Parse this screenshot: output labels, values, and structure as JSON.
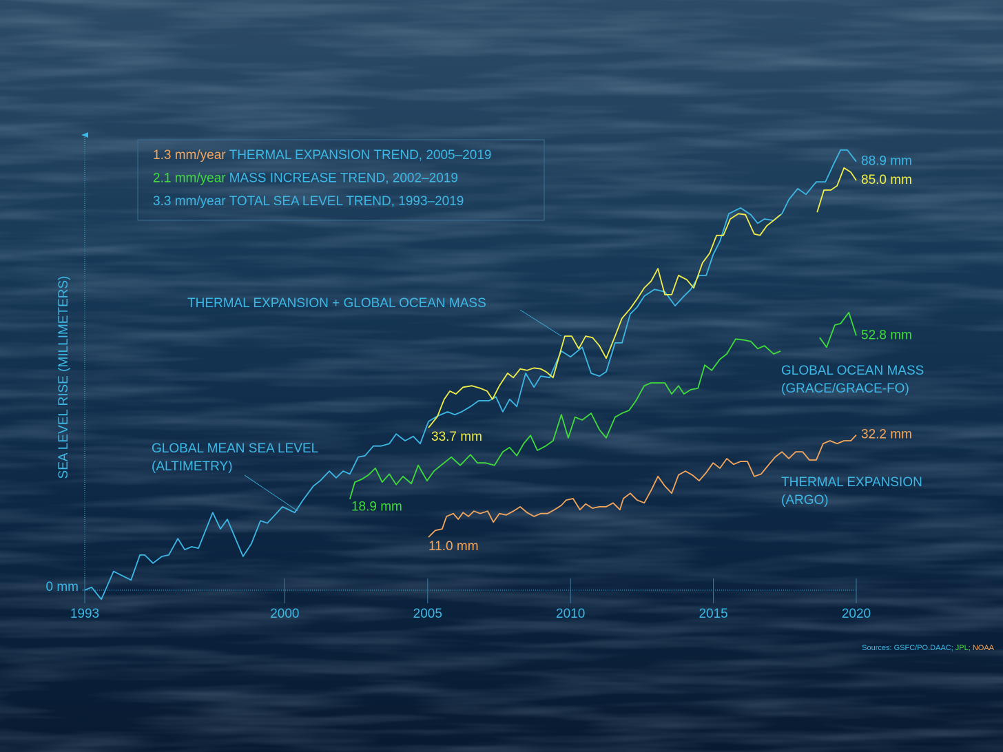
{
  "chart_data": {
    "type": "line",
    "y_label": "SEA LEVEL RISE (MILLIMETERS)",
    "xlim": [
      1993,
      2020
    ],
    "xticks": [
      1993,
      2000,
      2005,
      2010,
      2015,
      2020
    ],
    "ylim": [
      0,
      95
    ],
    "yticks": [
      {
        "value": 0,
        "label": "0 mm"
      }
    ],
    "trends": [
      {
        "rate": "1.3 mm/year",
        "text": "THERMAL EXPANSION TREND, 2005–2019",
        "color": "#f5a65b"
      },
      {
        "rate": "2.1 mm/year",
        "text": "MASS INCREASE TREND, 2002–2019",
        "color": "#3fdc3a"
      },
      {
        "rate": "3.3 mm/year",
        "text": "TOTAL SEA LEVEL TREND, 1993–2019",
        "color": "#3cb8e6"
      }
    ],
    "series": [
      {
        "label": [
          "GLOBAL MEAN SEA LEVEL",
          "(ALTIMETRY)"
        ],
        "color": "#3cb8e6",
        "end_label": "88.9 mm",
        "x": [
          1993.0,
          1993.24,
          1993.58,
          1994.01,
          1994.62,
          1994.93,
          1995.1,
          1995.39,
          1995.7,
          1995.94,
          1996.26,
          1996.5,
          1996.74,
          1996.98,
          1997.48,
          1997.75,
          1997.99,
          1998.54,
          1998.83,
          1999.15,
          1999.39,
          1999.92,
          2000.35,
          2000.64,
          2001.0,
          2001.24,
          2001.56,
          2001.8,
          2002.04,
          2002.28,
          2002.57,
          2002.81,
          2003.1,
          2003.37,
          2003.66,
          2003.9,
          2004.21,
          2004.5,
          2004.74,
          2005.03,
          2005.34,
          2005.7,
          2005.95,
          2006.19,
          2006.5,
          2006.79,
          2007.15,
          2007.39,
          2007.63,
          2007.87,
          2008.12,
          2008.43,
          2008.72,
          2008.96,
          2009.27,
          2009.68,
          2010.0,
          2010.41,
          2010.72,
          2011.01,
          2011.25,
          2011.56,
          2011.8,
          2012.09,
          2012.33,
          2012.58,
          2012.94,
          2013.3,
          2013.66,
          2013.97,
          2014.21,
          2014.5,
          2014.75,
          2014.99,
          2015.23,
          2015.54,
          2015.95,
          2016.31,
          2016.55,
          2016.79,
          2017.11,
          2017.4,
          2017.64,
          2017.95,
          2018.24,
          2018.6,
          2018.92,
          2019.21,
          2019.45,
          2019.69,
          2020.0
        ],
        "values": [
          0,
          0.6,
          -1.9,
          3.9,
          2.1,
          7.3,
          7.3,
          5.6,
          7.0,
          7.3,
          10.7,
          8.4,
          9.0,
          8.7,
          16.1,
          12.7,
          14.7,
          7.0,
          9.6,
          14.4,
          13.9,
          17.3,
          16.1,
          18.7,
          21.6,
          22.7,
          24.7,
          23.3,
          24.7,
          24.1,
          27.6,
          27.9,
          29.9,
          29.9,
          30.4,
          32.4,
          31.0,
          31.9,
          30.4,
          35.0,
          36.1,
          37.0,
          36.4,
          37.0,
          38.1,
          39.3,
          39.3,
          40.1,
          37.0,
          39.6,
          38.1,
          45.0,
          42.1,
          44.4,
          44.1,
          49.6,
          48.4,
          50.4,
          45.0,
          44.4,
          45.3,
          51.3,
          51.3,
          57.3,
          58.7,
          61.0,
          62.4,
          61.9,
          59.0,
          61.0,
          62.4,
          65.3,
          65.3,
          69.6,
          72.4,
          78.1,
          79.3,
          77.9,
          76.1,
          77.0,
          76.7,
          78.1,
          81.0,
          83.3,
          82.1,
          84.7,
          84.7,
          88.4,
          91.3,
          91.3,
          88.9
        ]
      },
      {
        "label": [
          "THERMAL EXPANSION + GLOBAL OCEAN MASS"
        ],
        "color": "#f2ee48",
        "start_label": "33.7 mm",
        "end_label": "85.0 mm",
        "x": [
          2005.03,
          2005.34,
          2005.58,
          2005.78,
          2005.99,
          2006.24,
          2006.55,
          2006.84,
          2007.08,
          2007.27,
          2007.51,
          2007.8,
          2008.0,
          2008.24,
          2008.48,
          2008.72,
          2008.96,
          2009.15,
          2009.39,
          2009.8,
          2010.04,
          2010.29,
          2010.53,
          2010.77,
          2011.01,
          2011.25,
          2011.56,
          2011.8,
          2012.09,
          2012.33,
          2012.58,
          2012.82,
          2013.06,
          2013.3,
          2013.54,
          2013.78,
          2014.07,
          2014.31,
          2014.62,
          2014.87,
          2015.11,
          2015.35,
          2015.59,
          2015.88,
          2016.12,
          2016.43,
          2016.63,
          2016.87,
          2017.11,
          2017.35,
          2018.0,
          2018.63,
          2018.87,
          2019.11,
          2019.33,
          2019.57,
          2019.81,
          2020.0
        ],
        "values": [
          33.7,
          36.0,
          39.6,
          41.3,
          40.7,
          42.1,
          42.4,
          41.9,
          41.3,
          39.6,
          42.4,
          45.0,
          44.1,
          45.9,
          45.6,
          46.1,
          45.9,
          45.3,
          44.1,
          52.7,
          52.7,
          50.1,
          52.7,
          52.4,
          50.7,
          48.1,
          52.7,
          56.4,
          58.4,
          60.4,
          62.7,
          64.1,
          66.7,
          61.3,
          61.3,
          65.3,
          64.4,
          62.7,
          67.9,
          69.9,
          73.6,
          73.6,
          77.0,
          78.1,
          77.9,
          73.9,
          73.6,
          75.6,
          76.7,
          77.9,
          null,
          78.4,
          83.0,
          83.0,
          83.9,
          87.6,
          86.7,
          85.0
        ]
      },
      {
        "label": [
          "GLOBAL OCEAN MASS",
          "(GRACE/GRACE-FO)"
        ],
        "color": "#3fdc3a",
        "start_label": "18.9 mm",
        "end_label": "52.8 mm",
        "x": [
          2002.28,
          2002.45,
          2002.69,
          2002.93,
          2003.17,
          2003.41,
          2003.66,
          2003.9,
          2004.14,
          2004.43,
          2004.67,
          2004.98,
          2005.22,
          2005.51,
          2005.83,
          2006.14,
          2006.5,
          2006.74,
          2007.03,
          2007.34,
          2007.63,
          2007.87,
          2008.12,
          2008.36,
          2008.6,
          2008.84,
          2009.13,
          2009.39,
          2009.68,
          2009.92,
          2010.16,
          2010.41,
          2010.72,
          2011.01,
          2011.25,
          2011.56,
          2011.8,
          2012.05,
          2012.29,
          2012.58,
          2012.82,
          2013.06,
          2013.3,
          2013.54,
          2013.78,
          2013.97,
          2014.21,
          2014.46,
          2014.7,
          2014.94,
          2015.23,
          2015.47,
          2015.78,
          2016.07,
          2016.31,
          2016.55,
          2016.79,
          2017.11,
          2017.35,
          2018.0,
          2018.72,
          2018.96,
          2019.25,
          2019.45,
          2019.74,
          2020.0
        ],
        "values": [
          18.9,
          22.4,
          23.0,
          23.9,
          25.3,
          22.4,
          24.1,
          21.9,
          23.6,
          22.1,
          25.9,
          22.7,
          24.7,
          26.1,
          27.6,
          25.9,
          28.1,
          26.4,
          26.4,
          25.9,
          28.7,
          29.6,
          27.9,
          30.4,
          32.1,
          29.0,
          29.9,
          31.0,
          36.4,
          31.6,
          35.9,
          35.3,
          36.7,
          33.3,
          31.6,
          35.9,
          36.7,
          37.3,
          39.3,
          42.4,
          43.0,
          43.0,
          43.0,
          40.7,
          42.4,
          40.7,
          41.6,
          41.9,
          46.7,
          45.6,
          47.9,
          49.0,
          52.1,
          51.9,
          51.6,
          50.1,
          50.7,
          49.0,
          49.6,
          null,
          52.4,
          50.4,
          55.0,
          55.3,
          57.6,
          52.8
        ]
      },
      {
        "label": [
          "THERMAL EXPANSION",
          "(ARGO)"
        ],
        "color": "#f5a65b",
        "start_label": "11.0 mm",
        "end_label": "32.2 mm",
        "x": [
          2005.03,
          2005.27,
          2005.51,
          2005.66,
          2005.9,
          2006.07,
          2006.24,
          2006.43,
          2006.62,
          2006.84,
          2007.1,
          2007.3,
          2007.51,
          2007.75,
          2008.0,
          2008.24,
          2008.48,
          2008.72,
          2008.96,
          2009.2,
          2009.44,
          2009.68,
          2009.85,
          2010.09,
          2010.33,
          2010.53,
          2010.77,
          2011.01,
          2011.25,
          2011.49,
          2011.73,
          2011.85,
          2012.09,
          2012.33,
          2012.58,
          2012.82,
          2013.06,
          2013.3,
          2013.54,
          2013.78,
          2014.02,
          2014.26,
          2014.5,
          2014.75,
          2014.99,
          2015.23,
          2015.47,
          2015.71,
          2015.95,
          2016.19,
          2016.43,
          2016.67,
          2016.92,
          2017.16,
          2017.4,
          2017.64,
          2017.88,
          2018.12,
          2018.36,
          2018.6,
          2018.84,
          2019.08,
          2019.33,
          2019.57,
          2019.81,
          2020.0
        ],
        "values": [
          11.0,
          12.4,
          12.7,
          15.3,
          15.9,
          14.7,
          16.1,
          15.3,
          16.4,
          15.9,
          16.4,
          14.1,
          15.9,
          15.6,
          16.4,
          17.3,
          16.1,
          15.3,
          15.9,
          15.9,
          16.7,
          17.6,
          18.7,
          19.0,
          16.7,
          17.9,
          17.0,
          17.3,
          17.3,
          18.1,
          16.7,
          19.0,
          20.1,
          18.7,
          18.1,
          20.7,
          23.6,
          21.6,
          20.1,
          23.9,
          24.7,
          23.9,
          22.7,
          24.4,
          26.4,
          25.3,
          27.3,
          26.1,
          26.7,
          26.7,
          23.6,
          24.1,
          25.9,
          27.6,
          28.7,
          27.3,
          28.7,
          28.7,
          27.0,
          27.0,
          30.4,
          31.0,
          30.4,
          31.0,
          31.0,
          32.2
        ]
      }
    ],
    "sources": [
      {
        "text": "Sources: GSFC/PO.DAAC;",
        "color": "#3cb8e6"
      },
      {
        "text": "JPL;",
        "color": "#3fdc3a"
      },
      {
        "text": "NOAA",
        "color": "#f5a65b"
      }
    ]
  }
}
